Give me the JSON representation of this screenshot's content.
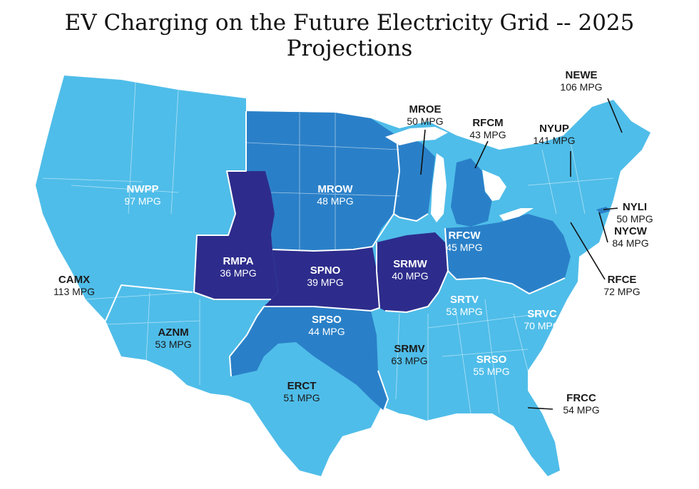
{
  "title": "EV Charging on the Future Electricity Grid -- 2025 Projections",
  "colors": {
    "light": "#4fbde9",
    "medium": "#2a80c8",
    "dark": "#2d2c8c",
    "land_outline": "#ffffff",
    "callout_text": "#1a1a1a"
  },
  "regions": [
    {
      "code": "NEWE",
      "mpg": "106 MPG",
      "shade": "light"
    },
    {
      "code": "MROE",
      "mpg": "50 MPG",
      "shade": "medium"
    },
    {
      "code": "RFCM",
      "mpg": "43 MPG",
      "shade": "medium"
    },
    {
      "code": "NYUP",
      "mpg": "141 MPG",
      "shade": "light"
    },
    {
      "code": "NWPP",
      "mpg": "97 MPG",
      "shade": "light"
    },
    {
      "code": "MROW",
      "mpg": "48 MPG",
      "shade": "medium"
    },
    {
      "code": "NYLI",
      "mpg": "50 MPG",
      "shade": "medium"
    },
    {
      "code": "RFCW",
      "mpg": "45 MPG",
      "shade": "medium"
    },
    {
      "code": "NYCW",
      "mpg": "84 MPG",
      "shade": "light"
    },
    {
      "code": "RMPA",
      "mpg": "36 MPG",
      "shade": "dark"
    },
    {
      "code": "SPNO",
      "mpg": "39 MPG",
      "shade": "dark"
    },
    {
      "code": "SRMW",
      "mpg": "40 MPG",
      "shade": "dark"
    },
    {
      "code": "CAMX",
      "mpg": "113 MPG",
      "shade": "light"
    },
    {
      "code": "RFCE",
      "mpg": "72 MPG",
      "shade": "light"
    },
    {
      "code": "SRTV",
      "mpg": "53 MPG",
      "shade": "light"
    },
    {
      "code": "SRVC",
      "mpg": "70 MPG",
      "shade": "light"
    },
    {
      "code": "AZNM",
      "mpg": "53 MPG",
      "shade": "light"
    },
    {
      "code": "SPSO",
      "mpg": "44 MPG",
      "shade": "medium"
    },
    {
      "code": "SRMV",
      "mpg": "63 MPG",
      "shade": "light"
    },
    {
      "code": "SRSO",
      "mpg": "55 MPG",
      "shade": "light"
    },
    {
      "code": "ERCT",
      "mpg": "51 MPG",
      "shade": "light"
    },
    {
      "code": "FRCC",
      "mpg": "54 MPG",
      "shade": "light"
    }
  ]
}
